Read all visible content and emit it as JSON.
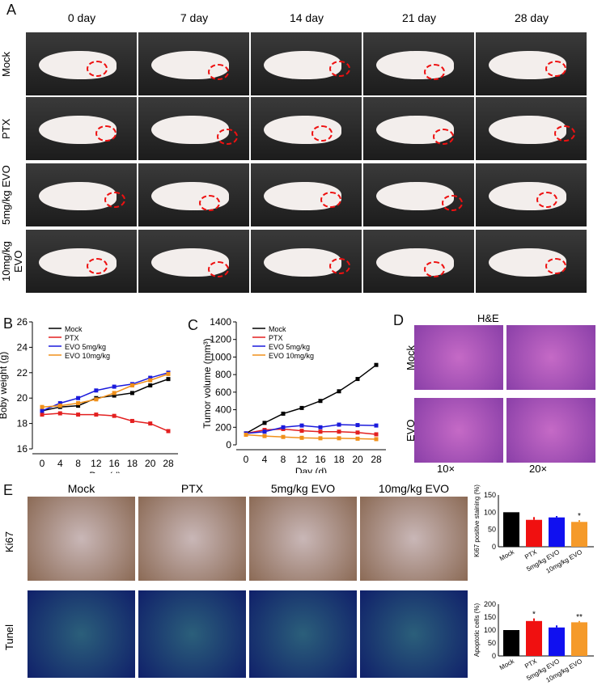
{
  "panels": {
    "A": "A",
    "B": "B",
    "C": "C",
    "D": "D",
    "E": "E"
  },
  "panelA": {
    "days": [
      "0 day",
      "7 day",
      "14 day",
      "21 day",
      "28 day"
    ],
    "groups": [
      "Mock",
      "PTX",
      "5mg/kg EVO",
      "10mg/kg EVO"
    ]
  },
  "panelD": {
    "title": "H&E",
    "rows": [
      "Mock",
      "EVO"
    ],
    "cols": [
      "10×",
      "20×"
    ]
  },
  "panelE": {
    "cols": [
      "Mock",
      "PTX",
      "5mg/kg EVO",
      "10mg/kg EVO"
    ],
    "rows": [
      "Ki67",
      "Tunel"
    ]
  },
  "chart_data": [
    {
      "type": "line",
      "title": "",
      "xlabel": "Day (d)",
      "ylabel": "Boby weight (g)",
      "x": [
        0,
        4,
        8,
        12,
        16,
        18,
        20,
        28
      ],
      "ylim": [
        16,
        26
      ],
      "series": [
        {
          "name": "Mock",
          "color": "#000000",
          "values": [
            19.0,
            19.3,
            19.4,
            20.0,
            20.2,
            20.4,
            21.0,
            21.5
          ]
        },
        {
          "name": "PTX",
          "color": "#e32020",
          "values": [
            18.7,
            18.8,
            18.7,
            18.7,
            18.6,
            18.2,
            18.0,
            17.4
          ]
        },
        {
          "name": "EVO 5mg/kg",
          "color": "#1a1adc",
          "values": [
            19.0,
            19.6,
            20.0,
            20.6,
            20.9,
            21.1,
            21.6,
            22.0
          ]
        },
        {
          "name": "EVO 10mg/kg",
          "color": "#f0901a",
          "values": [
            19.3,
            19.4,
            19.6,
            19.9,
            20.4,
            21.0,
            21.4,
            21.9
          ]
        }
      ]
    },
    {
      "type": "line",
      "title": "",
      "xlabel": "Day (d)",
      "ylabel": "Tumor volume (mm³)",
      "x": [
        0,
        4,
        8,
        12,
        16,
        18,
        20,
        28
      ],
      "ylim": [
        0,
        1400
      ],
      "series": [
        {
          "name": "Mock",
          "color": "#000000",
          "values": [
            130,
            250,
            355,
            420,
            500,
            610,
            750,
            910
          ]
        },
        {
          "name": "PTX",
          "color": "#e32020",
          "values": [
            130,
            170,
            180,
            160,
            150,
            150,
            140,
            120
          ]
        },
        {
          "name": "EVO 5mg/kg",
          "color": "#1a1adc",
          "values": [
            130,
            150,
            200,
            220,
            200,
            230,
            225,
            220
          ]
        },
        {
          "name": "EVO 10mg/kg",
          "color": "#f0901a",
          "values": [
            115,
            100,
            90,
            80,
            75,
            75,
            70,
            65
          ]
        }
      ]
    },
    {
      "type": "bar",
      "ylabel": "Ki67 positive staining (%)",
      "categories": [
        "Mock",
        "PTX",
        "5mg/kg EVO",
        "10mg/kg EVO"
      ],
      "values": [
        100,
        78,
        85,
        72
      ],
      "errors": [
        0,
        8,
        4,
        5
      ],
      "sig": [
        "",
        "",
        "",
        "*"
      ],
      "colors": [
        "#000000",
        "#f01010",
        "#1010f0",
        "#f59a2a"
      ],
      "ylim": [
        0,
        150
      ]
    },
    {
      "type": "bar",
      "ylabel": "Apoptotic cells (%)",
      "categories": [
        "Mock",
        "PTX",
        "5mg/kg EVO",
        "10mg/kg EVO"
      ],
      "values": [
        100,
        135,
        110,
        130
      ],
      "errors": [
        0,
        10,
        8,
        5
      ],
      "sig": [
        "",
        "*",
        "",
        "**"
      ],
      "colors": [
        "#000000",
        "#f01010",
        "#1010f0",
        "#f59a2a"
      ],
      "ylim": [
        0,
        200
      ]
    }
  ]
}
